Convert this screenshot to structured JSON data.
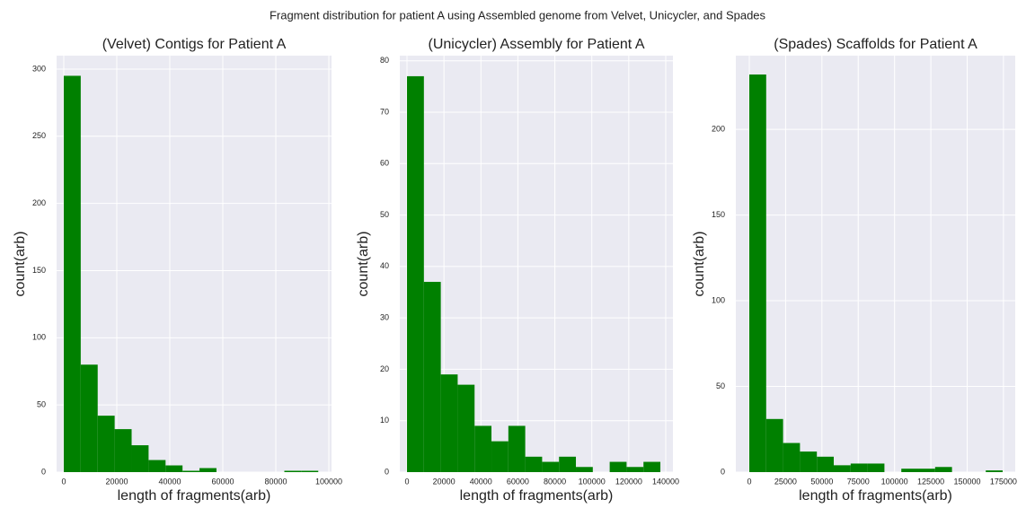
{
  "title": "Fragment distribution for patient A using Assembled genome from Velvet, Unicycler, and Spades",
  "chart_data": [
    {
      "type": "histogram",
      "title": "(Velvet) Contigs for Patient A",
      "x_label": "length of fragments(arb)",
      "y_label": "count(arb)",
      "bins": [
        0,
        6400,
        12800,
        19200,
        25600,
        32000,
        38400,
        44800,
        51200,
        57600,
        64000,
        70400,
        76800,
        83200,
        89600,
        96000
      ],
      "values": [
        295,
        80,
        42,
        32,
        20,
        9,
        5,
        1,
        3,
        0,
        0,
        0,
        0,
        1,
        1
      ],
      "color": "#008000",
      "grid": true,
      "xlim": [
        -2700,
        101000
      ],
      "xticks": [
        0,
        20000,
        40000,
        60000,
        80000,
        100000
      ],
      "ylim": [
        0,
        310
      ],
      "yticks": [
        0,
        50,
        100,
        150,
        200,
        250,
        300
      ]
    },
    {
      "type": "histogram",
      "title": "(Unicycler) Assembly for Patient A",
      "x_label": "length of fragments(arb)",
      "y_label": "count(arb)",
      "bins": [
        0,
        9140,
        18280,
        27420,
        36560,
        45700,
        54840,
        63980,
        73120,
        82260,
        91400,
        100540,
        109680,
        118820,
        127960,
        137100
      ],
      "values": [
        77,
        37,
        19,
        17,
        9,
        6,
        9,
        3,
        2,
        3,
        1,
        0,
        2,
        1,
        2
      ],
      "color": "#008000",
      "grid": true,
      "xlim": [
        -3900,
        143900
      ],
      "xticks": [
        0,
        20000,
        40000,
        60000,
        80000,
        100000,
        120000,
        140000
      ],
      "ylim": [
        0,
        81
      ],
      "yticks": [
        0,
        10,
        20,
        30,
        40,
        50,
        60,
        70,
        80
      ]
    },
    {
      "type": "histogram",
      "title": "(Spades) Scaffolds for Patient A",
      "x_label": "length of fragments(arb)",
      "y_label": "count(arb)",
      "bins": [
        0,
        11630,
        23260,
        34890,
        46520,
        58150,
        69780,
        81410,
        93040,
        104670,
        116300,
        127930,
        139560,
        151190,
        162820,
        174450
      ],
      "values": [
        232,
        31,
        17,
        12,
        9,
        4,
        5,
        5,
        0,
        2,
        2,
        3,
        0,
        0,
        1
      ],
      "color": "#008000",
      "grid": true,
      "xlim": [
        -9280,
        183100
      ],
      "xticks": [
        0,
        25000,
        50000,
        75000,
        100000,
        125000,
        150000,
        175000
      ],
      "ylim": [
        0,
        243
      ],
      "yticks": [
        0,
        50,
        100,
        150,
        200
      ]
    }
  ]
}
